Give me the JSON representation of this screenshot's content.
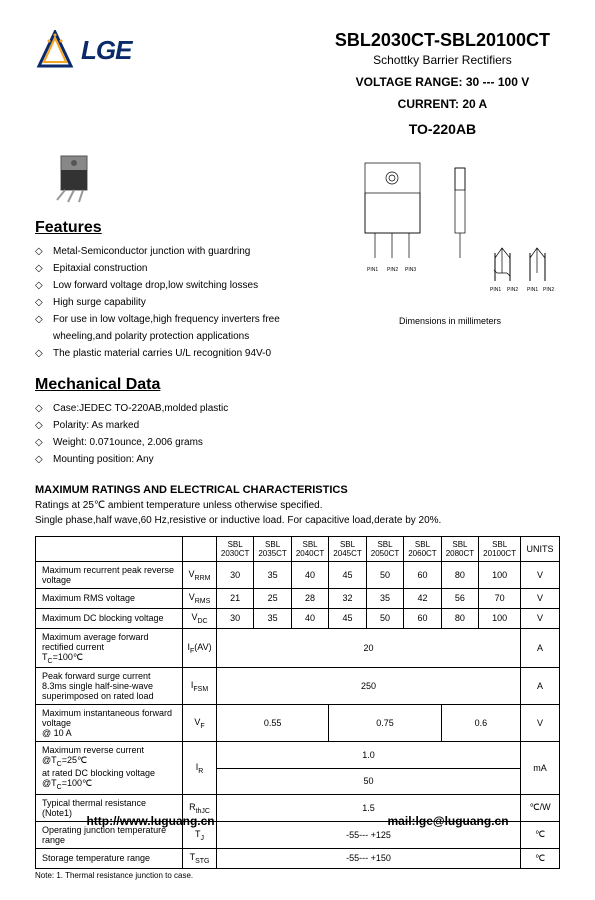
{
  "logo_text": "LGE",
  "part_number": "SBL2030CT-SBL20100CT",
  "subtitle": "Schottky Barrier Rectifiers",
  "voltage_line": "VOLTAGE  RANGE: 30 --- 100 V",
  "current_line": "CURRENT: 20 A",
  "package_type": "TO-220AB",
  "features_title": "Features",
  "features": [
    "Metal-Semiconductor junction with guardring",
    "Epitaxial construction",
    "Low forward voltage drop,low switching losses",
    "High surge capability",
    "For use in low voltage,high frequency inverters free wheeling,and polarity protection applications",
    "The plastic material carries U/L recognition 94V-0"
  ],
  "mech_title": "Mechanical Data",
  "mech": [
    "Case:JEDEC TO-220AB,molded plastic",
    "Polarity: As marked",
    "Weight: 0.071ounce, 2.006 grams",
    "Mounting position: Any"
  ],
  "pkg_caption": "Dimensions in millimeters",
  "max_heading": "MAXIMUM RATINGS AND ELECTRICAL CHARACTERISTICS",
  "max_sub1": "Ratings at 25℃ ambient temperature unless otherwise specified.",
  "max_sub2": "Single phase,half wave,60 Hz,resistive or inductive load. For capacitive load,derate by 20%.",
  "table": {
    "headers": [
      "",
      "",
      "SBL 2030CT",
      "SBL 2035CT",
      "SBL 2040CT",
      "SBL 2045CT",
      "SBL 2050CT",
      "SBL 2060CT",
      "SBL 2080CT",
      "SBL 20100CT",
      "UNITS"
    ],
    "rows": [
      {
        "param": "Maximum recurrent peak reverse voltage",
        "sym": "V_RRM",
        "vals": [
          "30",
          "35",
          "40",
          "45",
          "50",
          "60",
          "80",
          "100"
        ],
        "unit": "V"
      },
      {
        "param": "Maximum RMS voltage",
        "sym": "V_RMS",
        "vals": [
          "21",
          "25",
          "28",
          "32",
          "35",
          "42",
          "56",
          "70"
        ],
        "unit": "V"
      },
      {
        "param": "Maximum DC blocking voltage",
        "sym": "V_DC",
        "vals": [
          "30",
          "35",
          "40",
          "45",
          "50",
          "60",
          "80",
          "100"
        ],
        "unit": "V"
      },
      {
        "param": "Maximum average forward rectified current\n   T_C=100℃",
        "sym": "I_F(AV)",
        "span": "20",
        "unit": "A"
      },
      {
        "param": "Peak forward surge current\n   8.3ms single half-sine-wave\n   superimposed on rated load",
        "sym": "I_FSM",
        "span": "250",
        "unit": "A"
      },
      {
        "param": "Maximum instantaneous forward voltage\n   @ 10 A",
        "sym": "V_F",
        "triple": [
          "0.55",
          "0.75",
          "0.6"
        ],
        "unit": "V"
      },
      {
        "param": "Maximum reverse current        @T_C=25℃\n   at rated DC blocking  voltage   @T_C=100℃",
        "sym": "I_R",
        "double": [
          "1.0",
          "50"
        ],
        "unit": "mA"
      },
      {
        "param": "Typical thermal resistance    (Note1)",
        "sym": "R_thJC",
        "span": "1.5",
        "unit": "℃/W"
      },
      {
        "param": "Operating junction temperature range",
        "sym": "T_J",
        "span": "-55--- +125",
        "unit": "℃"
      },
      {
        "param": "Storage temperature range",
        "sym": "T_STG",
        "span": "-55--- +150",
        "unit": "℃"
      }
    ]
  },
  "note": "Note: 1. Thermal resistance junction to case.",
  "footer_url": "http://www.luguang.cn",
  "footer_mail": "mail:lge@luguang.cn"
}
